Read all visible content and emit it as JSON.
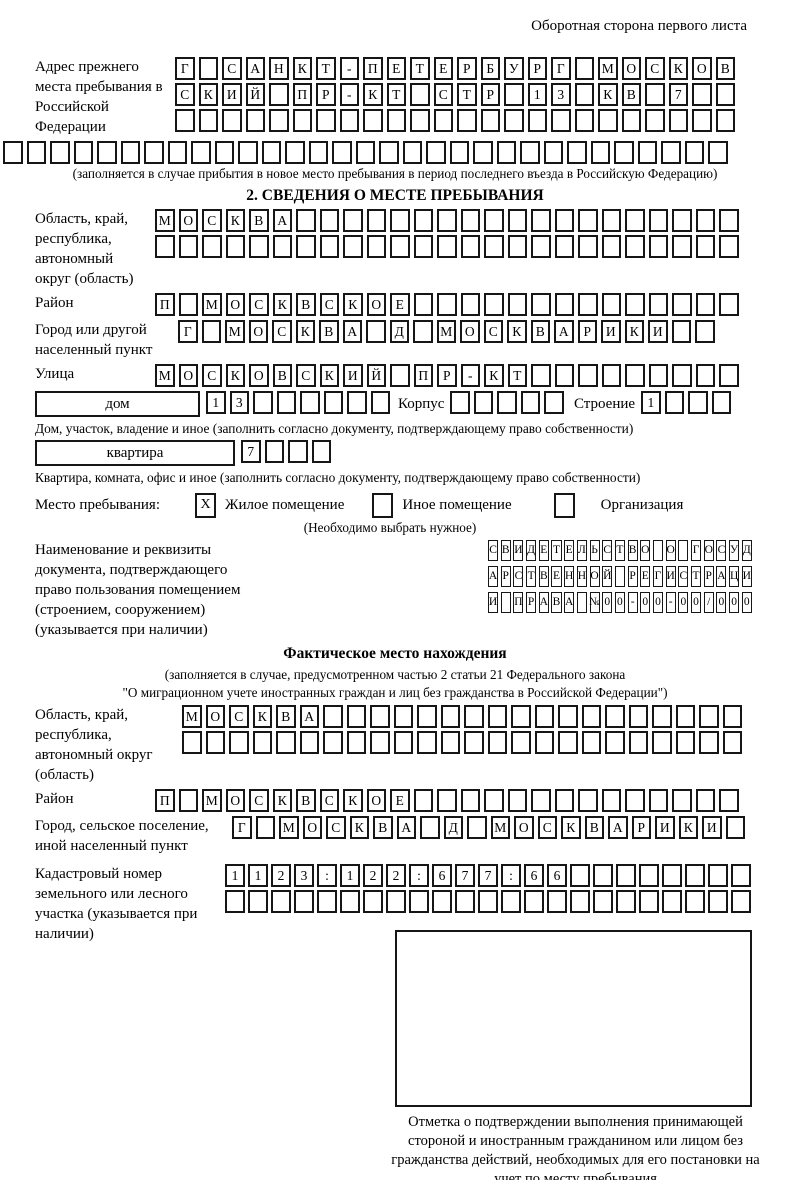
{
  "page_header": "Оборотная сторона первого листа",
  "prev_address": {
    "label": "Адрес прежнего места пребывания в Российской Федерации",
    "rows": [
      [
        "Г",
        "",
        "С",
        "А",
        "Н",
        "К",
        "Т",
        "-",
        "П",
        "Е",
        "Т",
        "Е",
        "Р",
        "Б",
        "У",
        "Р",
        "Г",
        "",
        "М",
        "О",
        "С",
        "К",
        "О",
        "В"
      ],
      [
        "С",
        "К",
        "И",
        "Й",
        "",
        "П",
        "Р",
        "-",
        "К",
        "Т",
        "",
        "С",
        "Т",
        "Р",
        "",
        "1",
        "3",
        "",
        "К",
        "В",
        "",
        "7",
        "",
        ""
      ],
      [
        "",
        "",
        "",
        "",
        "",
        "",
        "",
        "",
        "",
        "",
        "",
        "",
        "",
        "",
        "",
        "",
        "",
        "",
        "",
        "",
        "",
        "",
        "",
        ""
      ]
    ],
    "full_row": [
      "",
      "",
      "",
      "",
      "",
      "",
      "",
      "",
      "",
      "",
      "",
      "",
      "",
      "",
      "",
      "",
      "",
      "",
      "",
      "",
      "",
      "",
      "",
      "",
      "",
      "",
      "",
      "",
      "",
      "",
      ""
    ],
    "note": "(заполняется в случае прибытия в новое место пребывания в период последнего въезда в Российскую Федерацию)"
  },
  "section2": {
    "title": "2. СВЕДЕНИЯ О МЕСТЕ ПРЕБЫВАНИЯ",
    "region": {
      "label": "Область, край, республика, автономный округ (область)",
      "rows": [
        [
          "М",
          "О",
          "С",
          "К",
          "В",
          "А",
          "",
          "",
          "",
          "",
          "",
          "",
          "",
          "",
          "",
          "",
          "",
          "",
          "",
          "",
          "",
          "",
          "",
          "",
          ""
        ],
        [
          "",
          "",
          "",
          "",
          "",
          "",
          "",
          "",
          "",
          "",
          "",
          "",
          "",
          "",
          "",
          "",
          "",
          "",
          "",
          "",
          "",
          "",
          "",
          "",
          ""
        ]
      ]
    },
    "district": {
      "label": "Район",
      "cells": [
        "П",
        "",
        "М",
        "О",
        "С",
        "К",
        "В",
        "С",
        "К",
        "О",
        "Е",
        "",
        "",
        "",
        "",
        "",
        "",
        "",
        "",
        "",
        "",
        "",
        "",
        "",
        ""
      ]
    },
    "city": {
      "label": "Город или другой населенный пункт",
      "cells": [
        "Г",
        "",
        "М",
        "О",
        "С",
        "К",
        "В",
        "А",
        "",
        "Д",
        "",
        "М",
        "О",
        "С",
        "К",
        "В",
        "А",
        "Р",
        "И",
        "К",
        "И",
        "",
        ""
      ]
    },
    "street": {
      "label": "Улица",
      "cells": [
        "М",
        "О",
        "С",
        "К",
        "О",
        "В",
        "С",
        "К",
        "И",
        "Й",
        "",
        "П",
        "Р",
        "-",
        "К",
        "Т",
        "",
        "",
        "",
        "",
        "",
        "",
        "",
        "",
        ""
      ]
    },
    "house": {
      "box_label": "дом",
      "cells": [
        "1",
        "3",
        "",
        "",
        "",
        "",
        "",
        ""
      ],
      "korpus_label": "Корпус",
      "korpus_cells": [
        "",
        "",
        "",
        "",
        ""
      ],
      "stroenie_label": "Строение",
      "stroenie_cells": [
        "1",
        "",
        "",
        ""
      ]
    },
    "house_note": "Дом, участок, владение и иное (заполнить согласно документу, подтверждающему право собственности)",
    "apartment": {
      "box_label": "квартира",
      "cells": [
        "7",
        "",
        "",
        ""
      ]
    },
    "apartment_note": "Квартира, комната, офис и иное (заполнить согласно документу, подтверждающему право собственности)",
    "stay_type": {
      "label": "Место пребывания:",
      "options": [
        {
          "label": "Жилое помещение",
          "mark": "X"
        },
        {
          "label": "Иное помещение",
          "mark": ""
        },
        {
          "label": "Организация",
          "mark": ""
        }
      ],
      "note": "(Необходимо выбрать нужное)"
    },
    "document": {
      "label": "Наименование и реквизиты документа, подтверждающего право пользования помещением (строением, сооружением) (указывается при наличии)",
      "rows": [
        [
          "С",
          "В",
          "И",
          "Д",
          "Е",
          "Т",
          "Е",
          "Л",
          "Ь",
          "С",
          "Т",
          "В",
          "О",
          "",
          "О",
          "",
          "Г",
          "О",
          "С",
          "У",
          "Д"
        ],
        [
          "А",
          "Р",
          "С",
          "Т",
          "В",
          "Е",
          "Н",
          "Н",
          "О",
          "Й",
          "",
          "Р",
          "Е",
          "Г",
          "И",
          "С",
          "Т",
          "Р",
          "А",
          "Ц",
          "И"
        ],
        [
          "И",
          "",
          "П",
          "Р",
          "А",
          "В",
          "А",
          "",
          "№",
          "0",
          "0",
          "-",
          "0",
          "0",
          "-",
          "0",
          "0",
          "/",
          "0",
          "0",
          "0"
        ]
      ]
    }
  },
  "actual_location": {
    "title": "Фактическое место нахождения",
    "note_line1": "(заполняется в случае, предусмотренном частью 2 статьи 21 Федерального закона",
    "note_line2": "\"О миграционном учете иностранных граждан и лиц без гражданства в Российской Федерации\")",
    "region": {
      "label": "Область, край, республика, автономный округ (область)",
      "rows": [
        [
          "М",
          "О",
          "С",
          "К",
          "В",
          "А",
          "",
          "",
          "",
          "",
          "",
          "",
          "",
          "",
          "",
          "",
          "",
          "",
          "",
          "",
          "",
          "",
          "",
          ""
        ],
        [
          "",
          "",
          "",
          "",
          "",
          "",
          "",
          "",
          "",
          "",
          "",
          "",
          "",
          "",
          "",
          "",
          "",
          "",
          "",
          "",
          "",
          "",
          "",
          ""
        ]
      ]
    },
    "district": {
      "label": "Район",
      "cells": [
        "П",
        "",
        "М",
        "О",
        "С",
        "К",
        "В",
        "С",
        "К",
        "О",
        "Е",
        "",
        "",
        "",
        "",
        "",
        "",
        "",
        "",
        "",
        "",
        "",
        "",
        "",
        ""
      ]
    },
    "city": {
      "label": "Город, сельское поселение, иной населенный пункт",
      "cells": [
        "Г",
        "",
        "М",
        "О",
        "С",
        "К",
        "В",
        "А",
        "",
        "Д",
        "",
        "М",
        "О",
        "С",
        "К",
        "В",
        "А",
        "Р",
        "И",
        "К",
        "И",
        ""
      ]
    },
    "cadastral": {
      "label": "Кадастровый номер земельного или лесного участка (указывается при наличии)",
      "rows": [
        [
          "1",
          "1",
          "2",
          "3",
          ":",
          "1",
          "2",
          "2",
          ":",
          "6",
          "7",
          "7",
          ":",
          "6",
          "6",
          "",
          "",
          "",
          "",
          "",
          "",
          "",
          ""
        ],
        [
          "",
          "",
          "",
          "",
          "",
          "",
          "",
          "",
          "",
          "",
          "",
          "",
          "",
          "",
          "",
          "",
          "",
          "",
          "",
          "",
          "",
          "",
          ""
        ]
      ]
    }
  },
  "stamp": {
    "caption": "Отметка о подтверждении выполнения принимающей стороной и иностранным гражданином или лицом без гражданства действий, необходимых для его постановки на учет по месту пребывания"
  }
}
